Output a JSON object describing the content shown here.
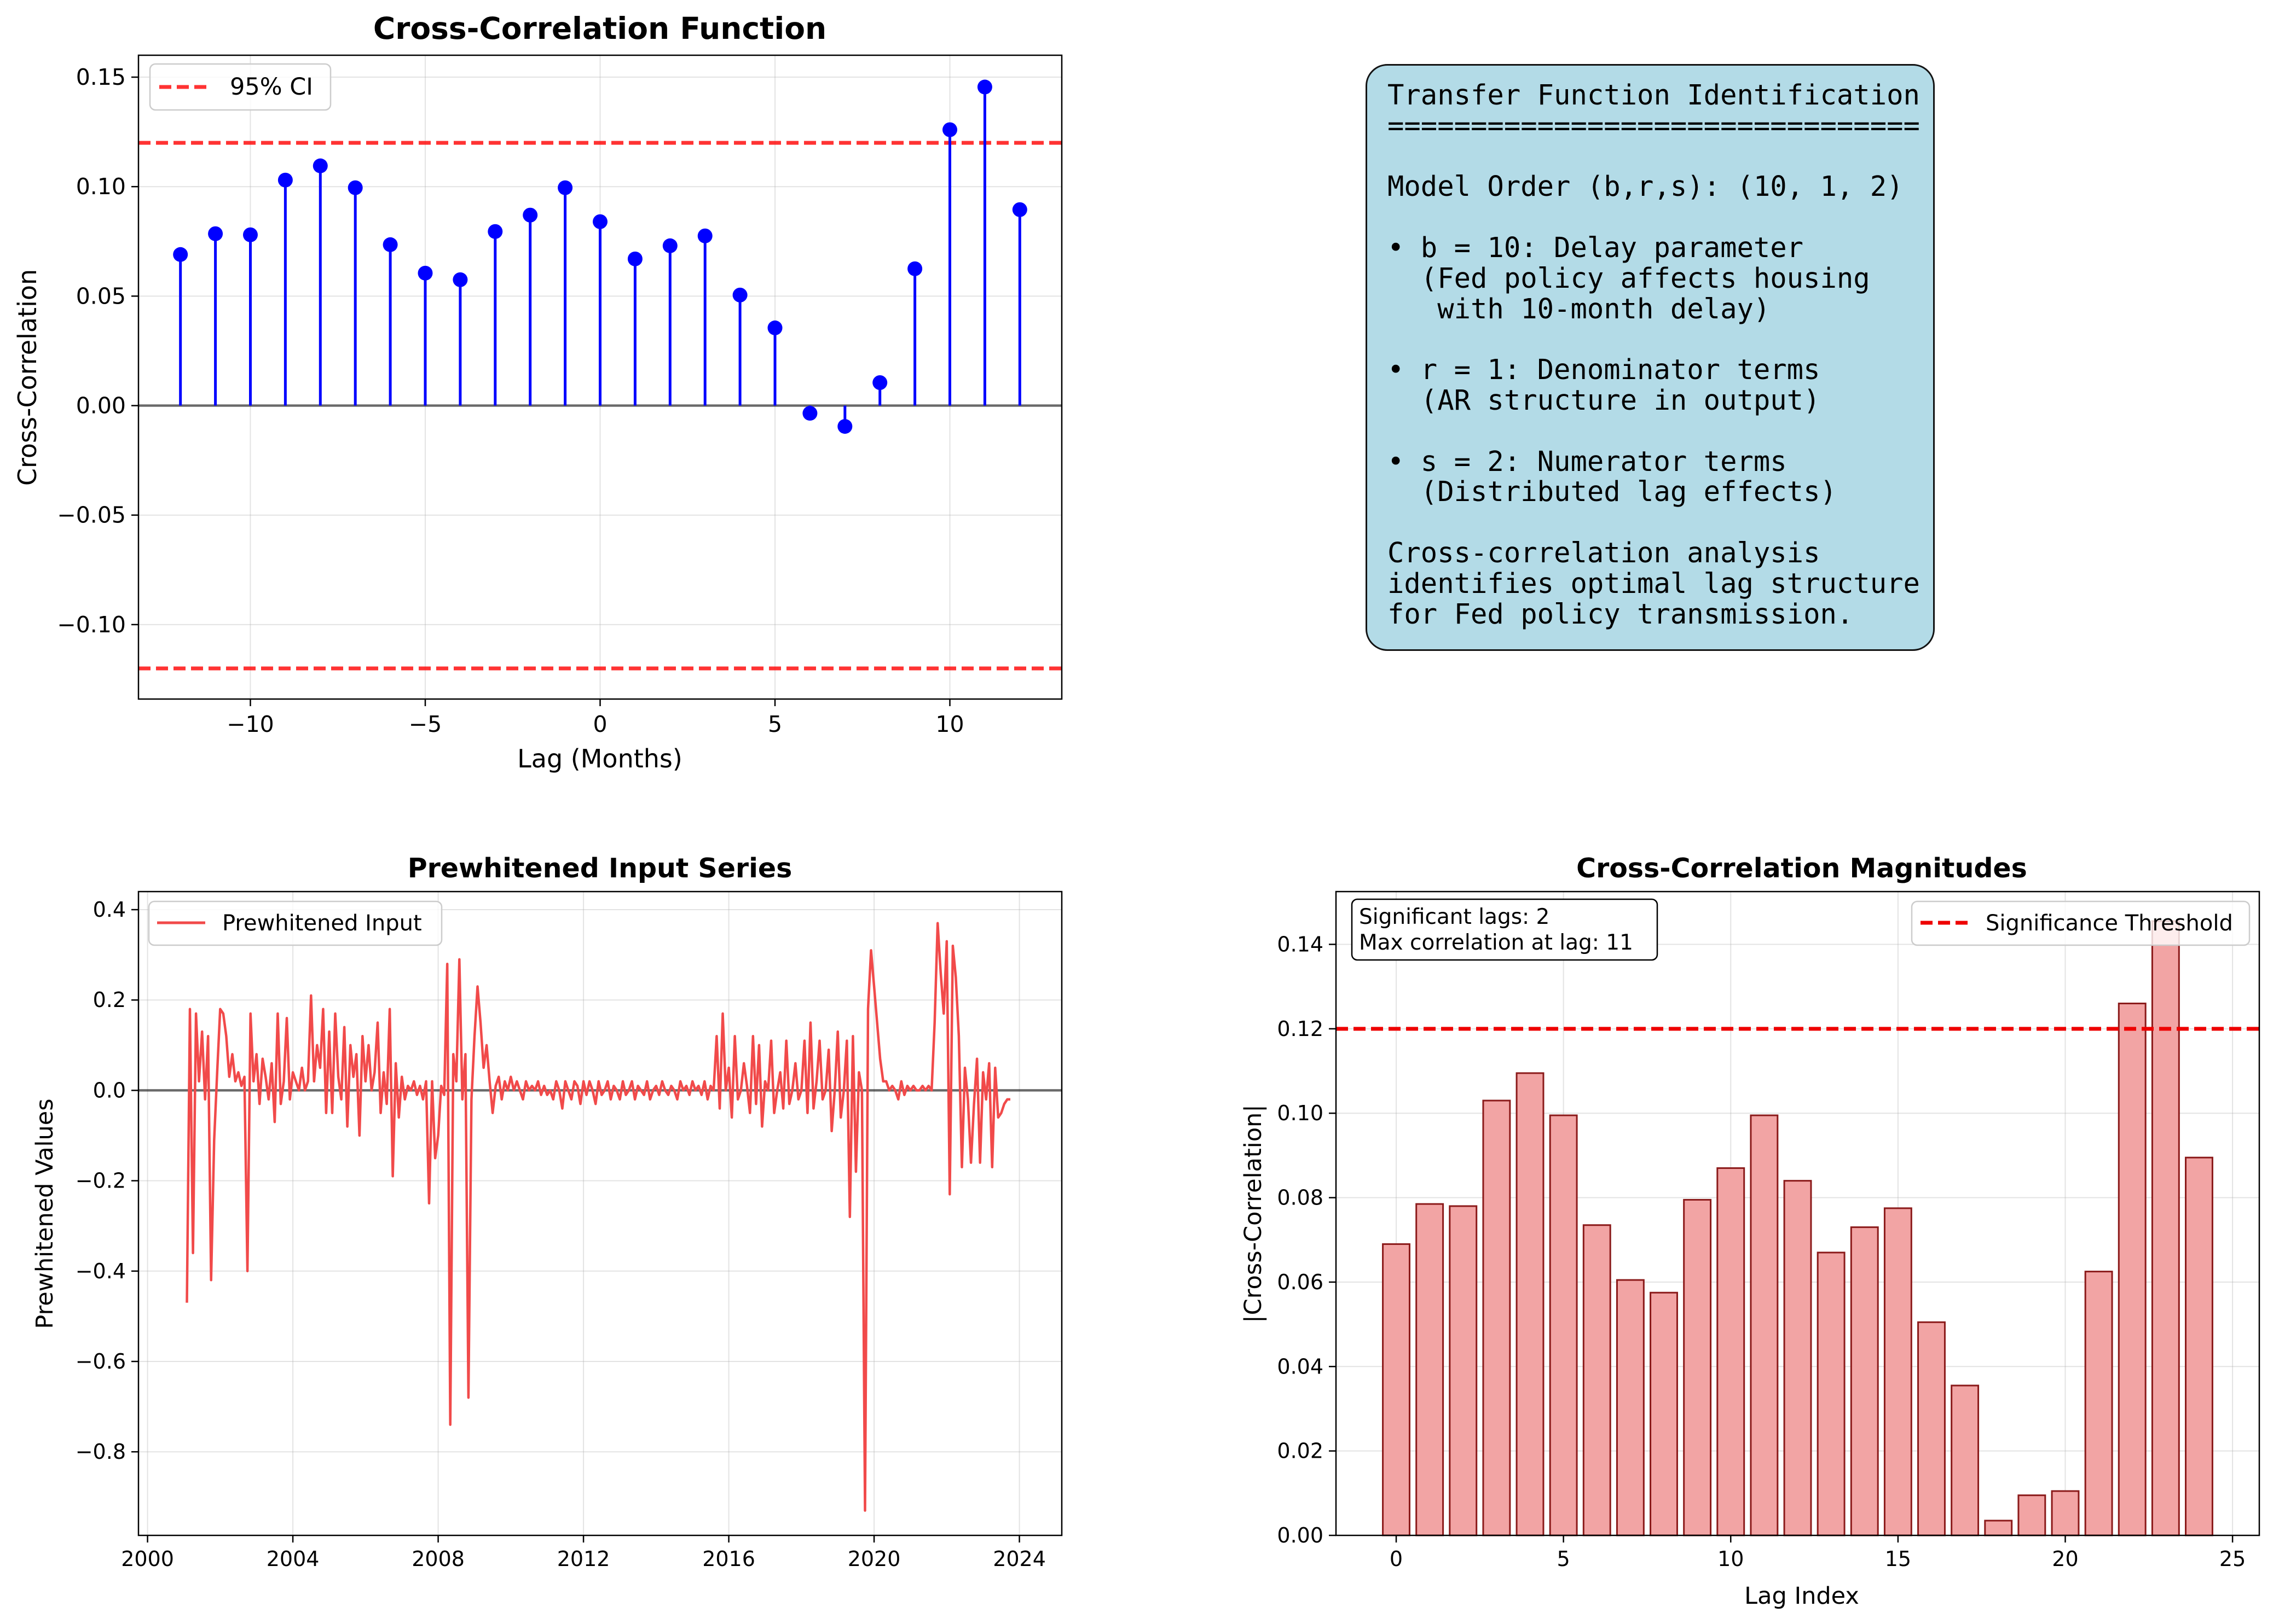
{
  "colors": {
    "stem": "#0000ff",
    "ci_line": "#ff0000",
    "prewhitened_line": "#f14a4a",
    "bar_fill": "#f2a4a4",
    "bar_edge": "#8b1a1a",
    "threshold_line": "#ee0000",
    "info_box": "#add8e6"
  },
  "panel_ccf": {
    "title": "Cross-Correlation Function",
    "xlabel": "Lag (Months)",
    "ylabel": "Cross-Correlation",
    "xticks": [
      "−10",
      "−5",
      "0",
      "5",
      "10"
    ],
    "yticks": [
      "0.15",
      "0.10",
      "0.05",
      "0.00",
      "−0.05",
      "−0.10"
    ],
    "legend": "95% CI"
  },
  "panel_info": {
    "lines": [
      "Transfer Function Identification",
      "================================",
      "",
      "Model Order (b,r,s): (10, 1, 2)",
      "",
      "• b = 10: Delay parameter",
      "  (Fed policy affects housing",
      "   with 10-month delay)",
      "",
      "• r = 1: Denominator terms",
      "  (AR structure in output)",
      "",
      "• s = 2: Numerator terms",
      "  (Distributed lag effects)",
      "",
      "Cross-correlation analysis",
      "identifies optimal lag structure",
      "for Fed policy transmission."
    ]
  },
  "panel_prewhite": {
    "title": "Prewhitened Input Series",
    "ylabel": "Prewhitened Values",
    "xticks": [
      "2000",
      "2004",
      "2008",
      "2012",
      "2016",
      "2020",
      "2024"
    ],
    "yticks": [
      "0.4",
      "0.2",
      "0.0",
      "−0.2",
      "−0.4",
      "−0.6",
      "−0.8"
    ],
    "legend": "Prewhitened Input"
  },
  "panel_mag": {
    "title": "Cross-Correlation Magnitudes",
    "xlabel": "Lag Index",
    "ylabel": "|Cross-Correlation|",
    "xticks": [
      "0",
      "5",
      "10",
      "15",
      "20",
      "25"
    ],
    "yticks": [
      "0.00",
      "0.02",
      "0.04",
      "0.06",
      "0.08",
      "0.10",
      "0.12",
      "0.14"
    ],
    "legend": "Significance Threshold",
    "annotation_lines": [
      "Significant lags: 2",
      "Max correlation at lag: 11"
    ]
  },
  "chart_data": [
    {
      "type": "stem",
      "title": "Cross-Correlation Function",
      "xlabel": "Lag (Months)",
      "ylabel": "Cross-Correlation",
      "x": [
        -12,
        -11,
        -10,
        -9,
        -8,
        -7,
        -6,
        -5,
        -4,
        -3,
        -2,
        -1,
        0,
        1,
        2,
        3,
        4,
        5,
        6,
        7,
        8,
        9,
        10,
        11,
        12
      ],
      "values": [
        0.069,
        0.0785,
        0.078,
        0.103,
        0.1095,
        0.0995,
        0.0735,
        0.0605,
        0.0575,
        0.0795,
        0.087,
        0.0995,
        0.084,
        0.067,
        0.073,
        0.0775,
        0.0505,
        0.0355,
        -0.0035,
        -0.0095,
        0.0105,
        0.0625,
        0.126,
        0.1455,
        0.0895
      ],
      "ci": [
        0.12,
        -0.12
      ],
      "series_name": "95% CI",
      "xlim": [
        -13.2,
        13.2
      ],
      "ylim": [
        -0.134,
        0.16
      ],
      "grid": true,
      "legend_position": "top-left"
    },
    {
      "type": "line",
      "title": "Prewhitened Input Series",
      "ylabel": "Prewhitened Values",
      "series_name": "Prewhitened Input",
      "x_start": "2001-02",
      "x_step": "1 month",
      "values": [
        -0.47,
        0.18,
        -0.36,
        0.17,
        0.02,
        0.13,
        -0.02,
        0.12,
        -0.42,
        -0.11,
        0.04,
        0.18,
        0.17,
        0.12,
        0.03,
        0.08,
        0.02,
        0.04,
        0.01,
        0.03,
        -0.4,
        0.17,
        0.02,
        0.08,
        -0.03,
        0.07,
        0.03,
        -0.02,
        0.06,
        -0.07,
        0.17,
        -0.03,
        0.02,
        0.16,
        -0.02,
        0.04,
        0.02,
        0.0,
        0.05,
        0.0,
        0.02,
        0.21,
        0.02,
        0.1,
        0.05,
        0.18,
        -0.05,
        0.13,
        -0.05,
        0.17,
        0.03,
        -0.02,
        0.14,
        -0.08,
        0.1,
        0.03,
        0.08,
        -0.1,
        0.12,
        0.02,
        0.1,
        0.0,
        0.04,
        0.15,
        -0.05,
        0.04,
        -0.03,
        0.18,
        -0.19,
        0.06,
        -0.06,
        0.03,
        -0.02,
        0.01,
        0.0,
        0.02,
        -0.01,
        0.01,
        -0.02,
        0.02,
        -0.25,
        0.02,
        -0.15,
        -0.1,
        0.01,
        -0.01,
        0.28,
        -0.74,
        0.08,
        0.02,
        0.29,
        -0.02,
        0.08,
        -0.68,
        -0.02,
        0.12,
        0.23,
        0.15,
        0.05,
        0.1,
        0.02,
        -0.05,
        0.01,
        0.03,
        -0.02,
        0.02,
        0.0,
        0.03,
        0.0,
        0.02,
        0.0,
        -0.02,
        0.02,
        0.0,
        0.01,
        0.0,
        0.02,
        -0.01,
        0.01,
        -0.01,
        0.0,
        -0.02,
        0.02,
        0.0,
        -0.04,
        0.02,
        0.0,
        -0.02,
        0.02,
        0.01,
        -0.03,
        0.02,
        -0.01,
        0.02,
        0.0,
        -0.03,
        0.02,
        -0.01,
        0.0,
        0.02,
        -0.02,
        0.01,
        0.0,
        -0.02,
        0.02,
        -0.01,
        0.0,
        0.02,
        -0.02,
        0.01,
        0.0,
        -0.01,
        0.02,
        -0.02,
        0.0,
        0.01,
        -0.01,
        0.02,
        0.0,
        -0.01,
        0.01,
        0.0,
        -0.02,
        0.02,
        0.0,
        0.01,
        -0.01,
        0.02,
        0.0,
        0.01,
        -0.01,
        0.02,
        -0.02,
        0.01,
        0.0,
        0.12,
        -0.04,
        0.17,
        0.0,
        0.05,
        -0.06,
        0.12,
        -0.02,
        0.0,
        0.06,
        0.01,
        -0.05,
        0.12,
        -0.03,
        0.1,
        -0.08,
        0.02,
        0.0,
        0.11,
        -0.05,
        0.0,
        0.04,
        -0.04,
        0.11,
        -0.03,
        0.0,
        0.06,
        -0.02,
        0.0,
        0.11,
        -0.05,
        0.15,
        -0.04,
        0.02,
        0.11,
        -0.02,
        0.0,
        0.09,
        -0.09,
        0.0,
        0.13,
        -0.06,
        0.0,
        0.11,
        -0.28,
        0.12,
        -0.18,
        0.04,
        0.0,
        -0.93,
        0.18,
        0.31,
        0.23,
        0.15,
        0.07,
        0.02,
        0.02,
        0.0,
        0.01,
        0.0,
        -0.02,
        0.02,
        -0.01,
        0.01,
        0.0,
        0.01,
        0.0,
        0.0,
        0.01,
        0.0,
        0.01,
        0.0,
        0.15,
        0.37,
        0.26,
        0.17,
        0.33,
        -0.23,
        0.32,
        0.25,
        0.12,
        -0.17,
        0.05,
        -0.02,
        -0.16,
        -0.03,
        0.07,
        -0.16,
        0.04,
        -0.02,
        0.06,
        -0.17,
        0.05,
        -0.06,
        -0.05,
        -0.03,
        -0.02,
        -0.02
      ],
      "xlim": [
        "1999-10",
        "2025-03"
      ],
      "ylim": [
        -0.985,
        0.44
      ],
      "grid": true,
      "legend_position": "top-left"
    },
    {
      "type": "bar",
      "title": "Cross-Correlation Magnitudes",
      "xlabel": "Lag Index",
      "ylabel": "|Cross-Correlation|",
      "categories": [
        0,
        1,
        2,
        3,
        4,
        5,
        6,
        7,
        8,
        9,
        10,
        11,
        12,
        13,
        14,
        15,
        16,
        17,
        18,
        19,
        20,
        21,
        22,
        23,
        24
      ],
      "values": [
        0.069,
        0.0785,
        0.078,
        0.103,
        0.1095,
        0.0995,
        0.0735,
        0.0605,
        0.0575,
        0.0795,
        0.087,
        0.0995,
        0.084,
        0.067,
        0.073,
        0.0775,
        0.0505,
        0.0355,
        0.0035,
        0.0095,
        0.0105,
        0.0625,
        0.126,
        0.1455,
        0.0895
      ],
      "threshold": 0.12,
      "series_name": "Significance Threshold",
      "xlim": [
        -1.8,
        25.8
      ],
      "ylim": [
        0,
        0.1525
      ],
      "grid": true,
      "legend_position": "top-right"
    }
  ]
}
